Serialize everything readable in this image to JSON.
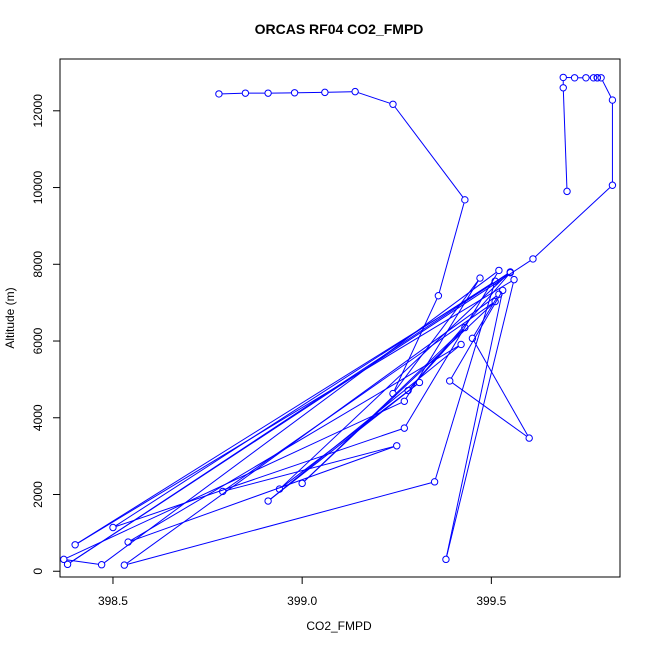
{
  "chart_data": {
    "type": "line",
    "title": "ORCAS RF04 CO2_FMPD",
    "xlabel": "CO2_FMPD",
    "ylabel": "Altitude (m)",
    "xlim": [
      398.36,
      399.84
    ],
    "ylim": [
      -150,
      13350
    ],
    "x_ticks": [
      398.5,
      399.0,
      399.5
    ],
    "x_tick_labels": [
      "398.5",
      "399.0",
      "399.5"
    ],
    "y_ticks": [
      0,
      2000,
      4000,
      6000,
      8000,
      10000,
      12000
    ],
    "y_tick_labels": [
      "0",
      "2000",
      "4000",
      "6000",
      "8000",
      "10000",
      "12000"
    ],
    "grid": false,
    "series": [
      {
        "color": "#0000ff",
        "marker": "circle",
        "line": true,
        "points": [
          [
            398.78,
            12440
          ],
          [
            398.85,
            12460
          ],
          [
            398.91,
            12460
          ],
          [
            398.98,
            12470
          ],
          [
            399.06,
            12480
          ],
          [
            399.14,
            12500
          ],
          [
            399.24,
            12170
          ],
          [
            399.43,
            9680
          ],
          [
            399.36,
            7180
          ],
          [
            399.24,
            4630
          ],
          [
            399.47,
            7640
          ],
          [
            399.27,
            4430
          ],
          [
            398.37,
            310
          ],
          [
            398.47,
            170
          ],
          [
            399.52,
            7840
          ],
          [
            399.27,
            3730
          ],
          [
            398.5,
            1140
          ],
          [
            399.51,
            7560
          ],
          [
            399.35,
            2330
          ],
          [
            398.53,
            160
          ],
          [
            399.52,
            7220
          ],
          [
            399.45,
            6070
          ],
          [
            399.6,
            3470
          ],
          [
            399.39,
            4960
          ],
          [
            399.53,
            7320
          ],
          [
            399.38,
            310
          ],
          [
            399.56,
            7600
          ],
          [
            398.4,
            690
          ],
          [
            399.55,
            7780
          ],
          [
            399.28,
            4710
          ],
          [
            399.43,
            6350
          ],
          [
            399.0,
            2290
          ],
          [
            399.51,
            7030
          ],
          [
            398.79,
            2080
          ],
          [
            399.25,
            3270
          ],
          [
            398.54,
            760
          ],
          [
            399.42,
            5910
          ],
          [
            398.91,
            1830
          ],
          [
            399.31,
            4920
          ],
          [
            398.94,
            2140
          ],
          [
            399.55,
            7800
          ],
          [
            398.38,
            180
          ],
          [
            399.61,
            8140
          ],
          [
            399.82,
            10060
          ],
          [
            399.82,
            12280
          ],
          [
            399.79,
            12860
          ],
          [
            399.78,
            12860
          ],
          [
            399.78,
            12860
          ],
          [
            399.77,
            12860
          ],
          [
            399.75,
            12860
          ],
          [
            399.72,
            12860
          ],
          [
            399.69,
            12870
          ],
          [
            399.69,
            12600
          ],
          [
            399.7,
            9900
          ]
        ]
      }
    ]
  }
}
